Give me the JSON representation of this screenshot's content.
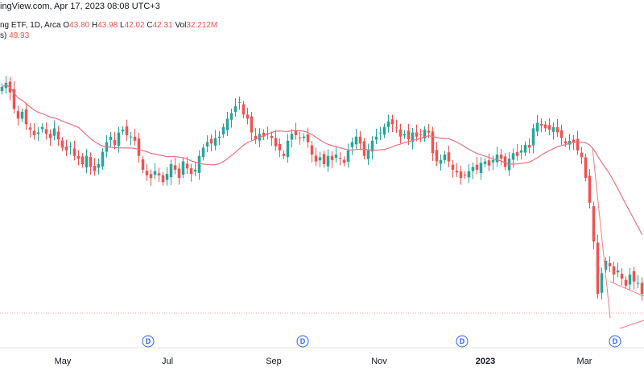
{
  "header": {
    "source_text": "ingView.com, Apr 17, 2023 08:08 UTC+3"
  },
  "legend": {
    "symbol_text": "ng ETF, 1D, Arca",
    "o_label": "O",
    "o_value": "43.80",
    "h_label": "H",
    "h_value": "43.98",
    "l_label": "L",
    "l_value": "42.02",
    "c_label": "C",
    "c_value": "42.31",
    "vol_label": "Vol",
    "vol_value": "32.212M",
    "ma_label": "s)",
    "ma_value": "49.93"
  },
  "colors": {
    "up": "#26a69a",
    "down": "#ef5350",
    "ma": "#e8707f",
    "dividend": "#2962ff",
    "trend": "#f07c8a"
  },
  "chart_data": {
    "type": "candlestick",
    "x_labels": [
      "May",
      "Jul",
      "Sep",
      "Nov",
      "2023",
      "Mar"
    ],
    "dividend_markers": [
      "D",
      "D",
      "D",
      "D"
    ],
    "close_series": [
      52.2,
      52.5,
      51.8,
      50.6,
      49.9,
      50.4,
      49.5,
      49.1,
      48.7,
      48.9,
      49.3,
      48.8,
      48.5,
      49.2,
      48.4,
      47.8,
      47.6,
      47.9,
      47.2,
      47.0,
      46.6,
      47.2,
      46.4,
      46.1,
      46.6,
      47.5,
      48.2,
      48.6,
      48.0,
      48.9,
      49.1,
      48.7,
      48.6,
      48.3,
      47.2,
      46.2,
      45.8,
      45.6,
      46.1,
      45.8,
      45.3,
      45.9,
      46.6,
      46.2,
      45.6,
      46.8,
      46.3,
      45.9,
      46.2,
      47.2,
      47.8,
      48.2,
      48.1,
      48.5,
      48.6,
      49.3,
      49.9,
      50.3,
      50.8,
      51.1,
      50.2,
      49.9,
      48.9,
      48.4,
      48.8,
      48.6,
      48.8,
      48.5,
      47.9,
      47.6,
      47.2,
      48.3,
      48.8,
      48.7,
      48.5,
      48.6,
      48.2,
      47.3,
      46.8,
      47.1,
      46.6,
      47.2,
      46.9,
      47.3,
      47.0,
      46.7,
      47.6,
      48.2,
      48.6,
      48.1,
      47.2,
      47.6,
      48.3,
      48.6,
      48.9,
      49.3,
      49.7,
      49.5,
      49.2,
      48.6,
      48.8,
      48.4,
      48.9,
      48.6,
      48.7,
      49.1,
      48.9,
      47.4,
      46.8,
      46.9,
      47.3,
      46.8,
      46.2,
      46.0,
      45.6,
      45.8,
      46.1,
      46.4,
      46.2,
      46.7,
      46.8,
      46.5,
      46.9,
      47.3,
      47.0,
      46.4,
      47.0,
      47.4,
      47.2,
      47.6,
      48.0,
      47.8,
      49.2,
      49.6,
      49.4,
      49.2,
      49.1,
      49.3,
      48.9,
      48.5,
      48.1,
      48.3,
      48.2,
      47.6,
      47.1,
      45.6,
      43.8,
      41.0,
      37.2,
      38.7,
      39.6,
      39.2,
      38.6,
      38.9,
      38.3,
      37.8,
      38.6,
      38.1,
      38.0,
      37.2
    ]
  }
}
